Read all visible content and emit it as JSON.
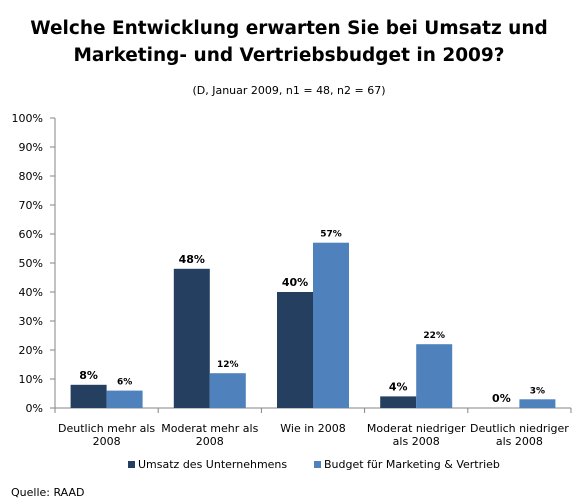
{
  "chart_data": {
    "type": "bar",
    "title_lines": [
      "Welche Entwicklung erwarten Sie bei Umsatz und",
      "Marketing- und Vertriebsbudget in 2009?"
    ],
    "subtitle": "(D, Januar 2009, n1 = 48, n2 = 67)",
    "categories": [
      [
        "Deutlich mehr als",
        "2008"
      ],
      [
        "Moderat mehr als",
        "2008"
      ],
      [
        "Wie in 2008"
      ],
      [
        "Moderat niedriger",
        "als 2008"
      ],
      [
        "Deutlich niedriger",
        "als 2008"
      ]
    ],
    "series": [
      {
        "name": "Umsatz des Unternehmens",
        "color": "#243f60",
        "values": [
          8,
          48,
          40,
          4,
          0
        ],
        "labels": [
          "8%",
          "48%",
          "40%",
          "4%",
          "0%"
        ]
      },
      {
        "name": "Budget für Marketing & Vertrieb",
        "color": "#4f81bd",
        "values": [
          6,
          12,
          57,
          22,
          3
        ],
        "labels": [
          "6%",
          "12%",
          "57%",
          "22%",
          "3%"
        ]
      }
    ],
    "yticks": [
      "0%",
      "10%",
      "20%",
      "30%",
      "40%",
      "50%",
      "60%",
      "70%",
      "80%",
      "90%",
      "100%"
    ],
    "ylim": [
      0,
      100
    ],
    "grid": false,
    "legend_position": "bottom"
  },
  "source": "Quelle: RAAD"
}
